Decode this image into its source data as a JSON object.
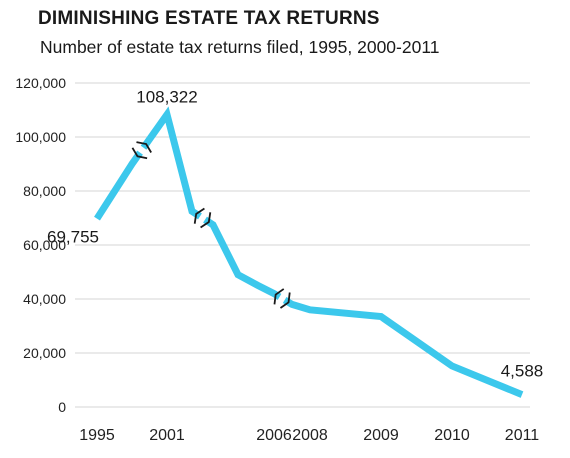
{
  "title": "DIMINISHING ESTATE TAX RETURNS",
  "subtitle": "Number of estate tax returns filed, 1995, 2000-2011",
  "chart_data": {
    "type": "line",
    "title": "DIMINISHING ESTATE TAX RETURNS",
    "subtitle": "Number of estate tax returns filed, 1995, 2000-2011",
    "xlabel": "",
    "ylabel": "",
    "ylim": [
      0,
      120000
    ],
    "yticks": [
      "0",
      "20,000",
      "40,000",
      "60,000",
      "80,000",
      "100,000",
      "120,000"
    ],
    "xtick_labels": [
      "1995",
      "2001",
      "2006",
      "2008",
      "2009",
      "2010",
      "2011"
    ],
    "grid": "horizontal",
    "line_color": "#3cc8ec",
    "axis_breaks": "shown between 1995–2001, 2001–2006 and 2006–2008",
    "series": [
      {
        "x": [
          "1995",
          "2000",
          "2001",
          "2002",
          "2003",
          "2004",
          "2005",
          "2006",
          "2007",
          "2008",
          "2009",
          "2010",
          "2011"
        ],
        "values": [
          69755,
          90000,
          108322,
          72500,
          67500,
          49000,
          45000,
          42000,
          38000,
          36000,
          33500,
          15200,
          4588
        ]
      }
    ],
    "data_labels": [
      {
        "x": "1995",
        "text": "69,755"
      },
      {
        "x": "2001",
        "text": "108,322"
      },
      {
        "x": "2011",
        "text": "4,588"
      }
    ]
  }
}
